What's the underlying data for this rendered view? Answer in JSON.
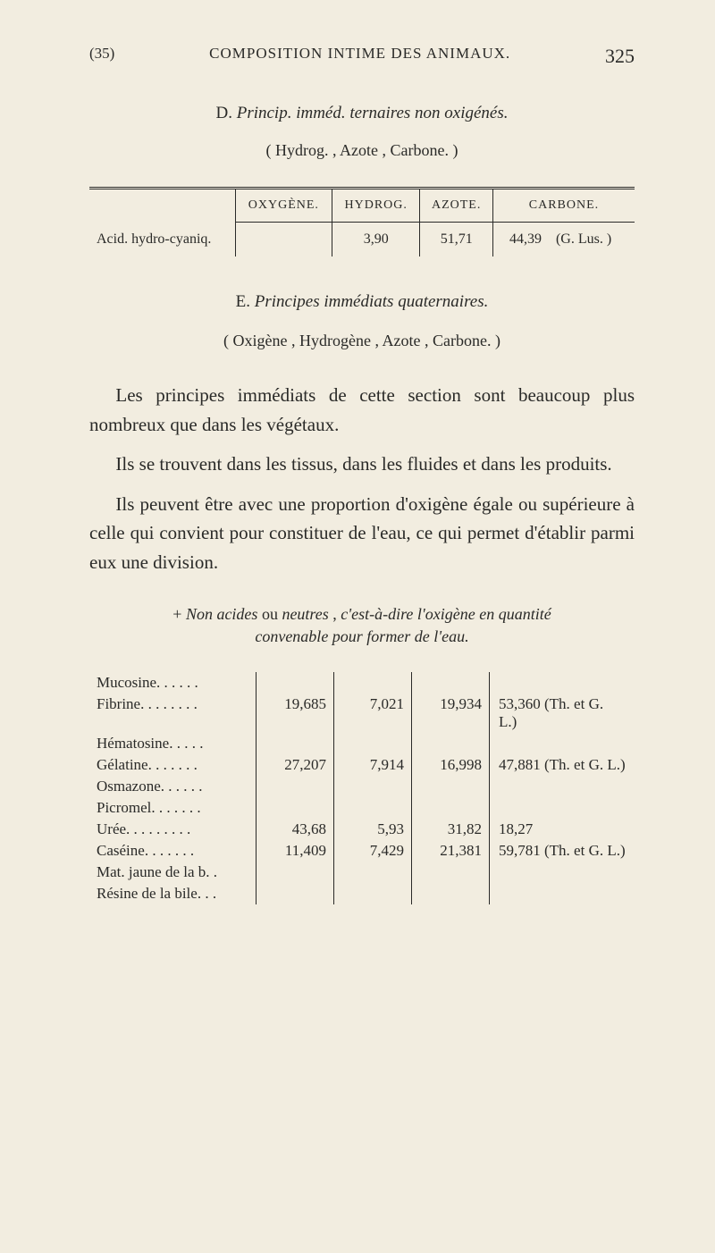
{
  "header": {
    "ref": "(35)",
    "title": "COMPOSITION INTIME DES ANIMAUX.",
    "page": "325"
  },
  "sectionD": {
    "label": "D.",
    "title_italic": "Princip. imméd. ternaires non oxigénés.",
    "subhead": "( Hydrog. , Azote , Carbone. )"
  },
  "table1": {
    "headers": [
      "OXYGÈNE.",
      "HYDROG.",
      "AZOTE.",
      "CARBONE."
    ],
    "row": {
      "label": "Acid. hydro-cyaniq.",
      "oxy": "",
      "hyd": "3,90",
      "azo": "51,71",
      "carb": "44,39    (G. Lus. )"
    }
  },
  "sectionE": {
    "label": "E.",
    "title_italic": "Principes immédiats quaternaires.",
    "paren": "( Oxigène , Hydrogène , Azote , Carbone. )"
  },
  "paragraphs": [
    "Les principes immédiats de cette section sont beaucoup plus nombreux que dans les végétaux.",
    "Ils se trouvent dans les tissus, dans les fluides et dans les produits.",
    "Ils peuvent être avec une proportion d'oxigène égale ou supérieure à celle qui convient pour constituer de l'eau, ce qui permet d'établir parmi eux une division."
  ],
  "plusnon": {
    "line1_prefix": "+ ",
    "line1_italic1": "Non acides",
    "line1_mid": " ou ",
    "line1_italic2": "neutres",
    "line1_rest1": " , ",
    "line1_italic3": "c'est-à-dire l'oxigène en quantité",
    "line2_italic": "convenable pour former de l'eau."
  },
  "table2": {
    "rows": [
      {
        "name": "Mucosine. . . . . .",
        "c1": "",
        "c2": "",
        "c3": "",
        "c4": ""
      },
      {
        "name": "Fibrine. . . . . . . .",
        "c1": "19,685",
        "c2": "7,021",
        "c3": "19,934",
        "c4": "53,360 (Th. et G.  L.)"
      },
      {
        "name": "Hématosine. . . . .",
        "c1": "",
        "c2": "",
        "c3": "",
        "c4": ""
      },
      {
        "name": "Gélatine. . . . . . .",
        "c1": "27,207",
        "c2": "7,914",
        "c3": "16,998",
        "c4": "47,881 (Th. et G. L.)"
      },
      {
        "name": "Osmazone. . . . . .",
        "c1": "",
        "c2": "",
        "c3": "",
        "c4": ""
      },
      {
        "name": "Picromel. . . . . . .",
        "c1": "",
        "c2": "",
        "c3": "",
        "c4": ""
      },
      {
        "name": "Urée. . . . . . . . .",
        "c1": "43,68",
        "c2": "5,93",
        "c3": "31,82",
        "c4": "18,27"
      },
      {
        "name": "Caséine. . . . . . .",
        "c1": "11,409",
        "c2": "7,429",
        "c3": "21,381",
        "c4": "59,781 (Th. et G. L.)"
      },
      {
        "name": "Mat. jaune de la b. .",
        "c1": "",
        "c2": "",
        "c3": "",
        "c4": ""
      },
      {
        "name": "Résine de la bile. . .",
        "c1": "",
        "c2": "",
        "c3": "",
        "c4": ""
      }
    ]
  },
  "colors": {
    "background": "#f2ede0",
    "text": "#2a2a28"
  }
}
